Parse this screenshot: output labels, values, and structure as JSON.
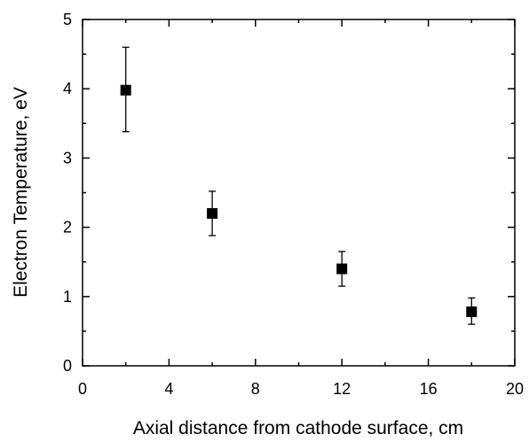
{
  "chart_data": {
    "type": "scatter",
    "title": "",
    "xlabel": "Axial distance from cathode surface, cm",
    "ylabel": "Electron Temperature, eV",
    "xlim": [
      0,
      20
    ],
    "ylim": [
      0,
      5
    ],
    "x_ticks": [
      0,
      4,
      8,
      12,
      16,
      20
    ],
    "y_ticks": [
      0,
      1,
      2,
      3,
      4,
      5
    ],
    "grid": false,
    "legend": "none",
    "marker": "square",
    "color": "#000000",
    "series": [
      {
        "points": [
          {
            "x": 2,
            "y": 3.98,
            "y_err_low": 3.38,
            "y_err_high": 4.6
          },
          {
            "x": 6,
            "y": 2.2,
            "y_err_low": 1.88,
            "y_err_high": 2.52
          },
          {
            "x": 12,
            "y": 1.4,
            "y_err_low": 1.15,
            "y_err_high": 1.65
          },
          {
            "x": 18,
            "y": 0.78,
            "y_err_low": 0.6,
            "y_err_high": 0.98
          }
        ]
      }
    ]
  }
}
